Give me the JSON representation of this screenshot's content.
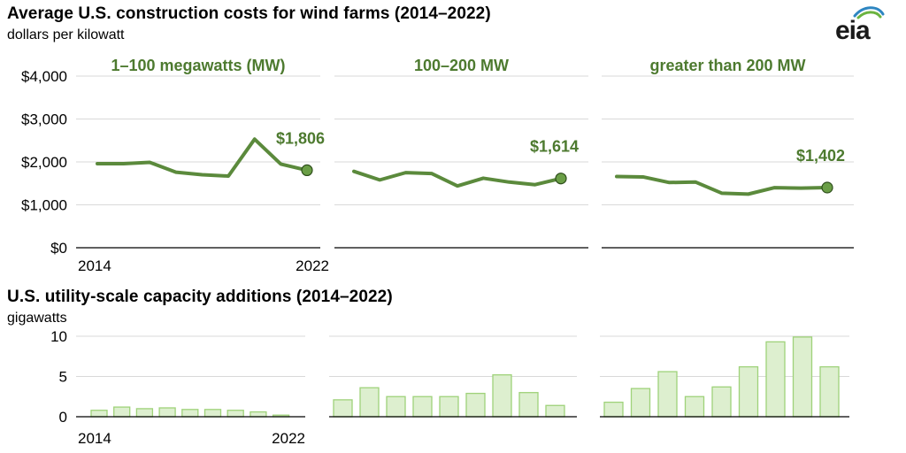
{
  "titles": {
    "top": "Average U.S. construction costs for wind farms (2014–2022)",
    "top_unit": "dollars per kilowatt",
    "bottom": "U.S. utility-scale capacity additions (2014–2022)",
    "bottom_unit": "gigawatts"
  },
  "logo": {
    "text": "eia",
    "icon": "eia-logo-icon"
  },
  "colors": {
    "line": "#5b8a3c",
    "label": "#4d7a2f",
    "bar_fill": "#ddefcf",
    "bar_stroke": "#9fd27a"
  },
  "chart_data": [
    {
      "type": "line",
      "panel_title": "1–100 megawatts (MW)",
      "x": [
        2014,
        2015,
        2016,
        2017,
        2018,
        2019,
        2020,
        2021,
        2022
      ],
      "series": [
        {
          "values": [
            1960,
            1960,
            1990,
            1760,
            1700,
            1670,
            2530,
            1950,
            1806
          ]
        }
      ],
      "endpoint_label": "$1,806",
      "ylim": [
        0,
        4000
      ],
      "yticks": [
        "$0",
        "$1,000",
        "$2,000",
        "$3,000",
        "$4,000"
      ],
      "xtick_labels": [
        "2014",
        "2022"
      ],
      "grid": true
    },
    {
      "type": "line",
      "panel_title": "100–200 MW",
      "x": [
        2014,
        2015,
        2016,
        2017,
        2018,
        2019,
        2020,
        2021,
        2022
      ],
      "series": [
        {
          "values": [
            1780,
            1580,
            1750,
            1730,
            1440,
            1620,
            1530,
            1470,
            1614
          ]
        }
      ],
      "endpoint_label": "$1,614",
      "ylim": [
        0,
        4000
      ],
      "grid": true
    },
    {
      "type": "line",
      "panel_title": "greater than 200 MW",
      "x": [
        2014,
        2015,
        2016,
        2017,
        2018,
        2019,
        2020,
        2021,
        2022
      ],
      "series": [
        {
          "values": [
            1660,
            1650,
            1520,
            1530,
            1270,
            1250,
            1400,
            1390,
            1402
          ]
        }
      ],
      "endpoint_label": "$1,402",
      "ylim": [
        0,
        4000
      ],
      "grid": true
    },
    {
      "type": "bar",
      "categories": [
        2014,
        2015,
        2016,
        2017,
        2018,
        2019,
        2020,
        2021,
        2022
      ],
      "values": [
        0.8,
        1.2,
        1.0,
        1.1,
        0.9,
        0.9,
        0.8,
        0.6,
        0.2
      ],
      "ylim": [
        0,
        10
      ],
      "yticks": [
        "0",
        "5",
        "10"
      ],
      "xtick_labels": [
        "2014",
        "2022"
      ],
      "grid": true
    },
    {
      "type": "bar",
      "categories": [
        2014,
        2015,
        2016,
        2017,
        2018,
        2019,
        2020,
        2021,
        2022
      ],
      "values": [
        2.1,
        3.6,
        2.5,
        2.5,
        2.5,
        2.9,
        5.2,
        3.0,
        1.4
      ],
      "ylim": [
        0,
        10
      ],
      "grid": true
    },
    {
      "type": "bar",
      "categories": [
        2014,
        2015,
        2016,
        2017,
        2018,
        2019,
        2020,
        2021,
        2022
      ],
      "values": [
        1.8,
        3.5,
        5.6,
        2.5,
        3.7,
        6.2,
        9.3,
        9.9,
        6.2
      ],
      "ylim": [
        0,
        10
      ],
      "grid": true
    }
  ]
}
